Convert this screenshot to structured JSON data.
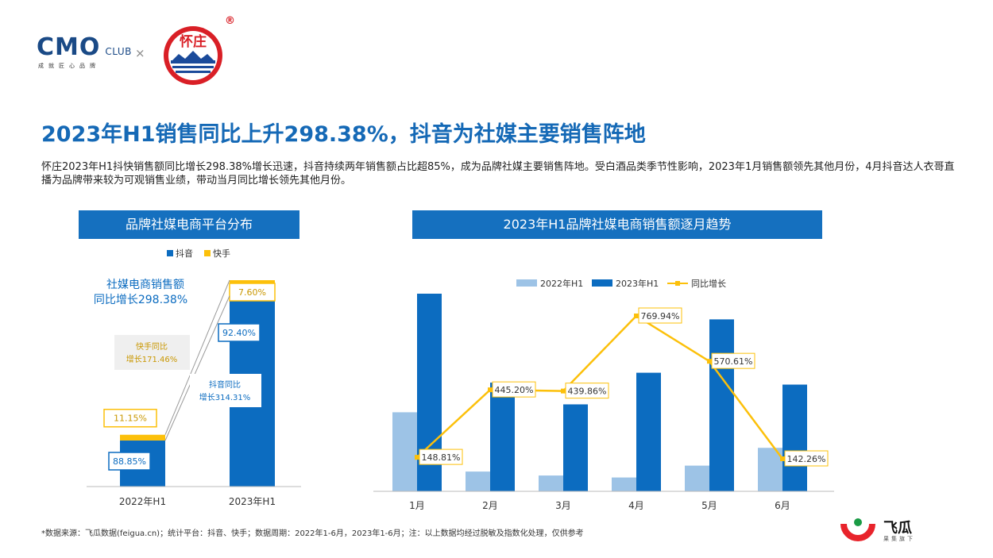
{
  "header": {
    "cmo_logo": "CMO",
    "cmo_club": "CLUB",
    "cmo_tagline": "成就匠心品牌",
    "separator": "×",
    "brand_logo_text": "怀庄",
    "registered": "®"
  },
  "title": "2023年H1销售同比上升298.38%，抖音为社媒主要销售阵地",
  "description": "怀庄2023年H1抖快销售额同比增长298.38%增长迅速，抖音持续两年销售额占比超85%，成为品牌社媒主要销售阵地。受白酒品类季节性影响，2023年1月销售额领先其他月份，4月抖音达人衣哥直播为品牌带来较为可观销售业绩，带动当月同比增长领先其他月份。",
  "left_panel": {
    "header": "品牌社媒电商平台分布",
    "callout_line1": "社媒电商销售额",
    "callout_line2": "同比增长298.38%",
    "kuaishou_note_line1": "快手同比",
    "kuaishou_note_line2": "增长171.46%",
    "douyin_note_line1": "抖音同比",
    "douyin_note_line2": "增长314.31%"
  },
  "right_panel": {
    "header": "2023年H1品牌社媒电商销售额逐月趋势"
  },
  "colors": {
    "douyin": "#0c6cc0",
    "kuaishou": "#fcc00a",
    "h1_2022": "#9dc3e6",
    "h1_2023": "#0c6cc0",
    "growth": "#fcc00a",
    "header_bg": "#1570bf"
  },
  "chart_data": [
    {
      "type": "bar",
      "stacked": true,
      "categories": [
        "2022年H1",
        "2023年H1"
      ],
      "series": [
        {
          "name": "抖音",
          "values": [
            88.85,
            92.4
          ],
          "labels": [
            "88.85%",
            "92.40%"
          ]
        },
        {
          "name": "快手",
          "values": [
            11.15,
            7.6
          ],
          "labels": [
            "11.15%",
            "7.60%"
          ]
        }
      ],
      "total_relative": [
        1.0,
        3.9838
      ],
      "legend_position": "top"
    },
    {
      "type": "bar",
      "categories": [
        "1月",
        "2月",
        "3月",
        "4月",
        "5月",
        "6月"
      ],
      "series": [
        {
          "name": "2022年H1",
          "values": [
            40,
            10,
            8,
            7,
            13,
            22
          ]
        },
        {
          "name": "2023年H1",
          "values": [
            100,
            55,
            44,
            60,
            87,
            54
          ]
        },
        {
          "name": "同比增长",
          "type": "line",
          "values": [
            148.81,
            445.2,
            439.86,
            769.94,
            570.61,
            142.26
          ],
          "labels": [
            "148.81%",
            "445.20%",
            "439.86%",
            "769.94%",
            "570.61%",
            "142.26%"
          ]
        }
      ],
      "legend_position": "top"
    }
  ],
  "footnote": "*数据来源：飞瓜数据(feigua.cn)；统计平台：抖音、快手；数据周期：2022年1-6月，2023年1-6月；注：以上数据均经过脱敏及指数化处理，仅供参考",
  "feigua": {
    "name": "飞瓜",
    "sub": "果集旗下"
  }
}
